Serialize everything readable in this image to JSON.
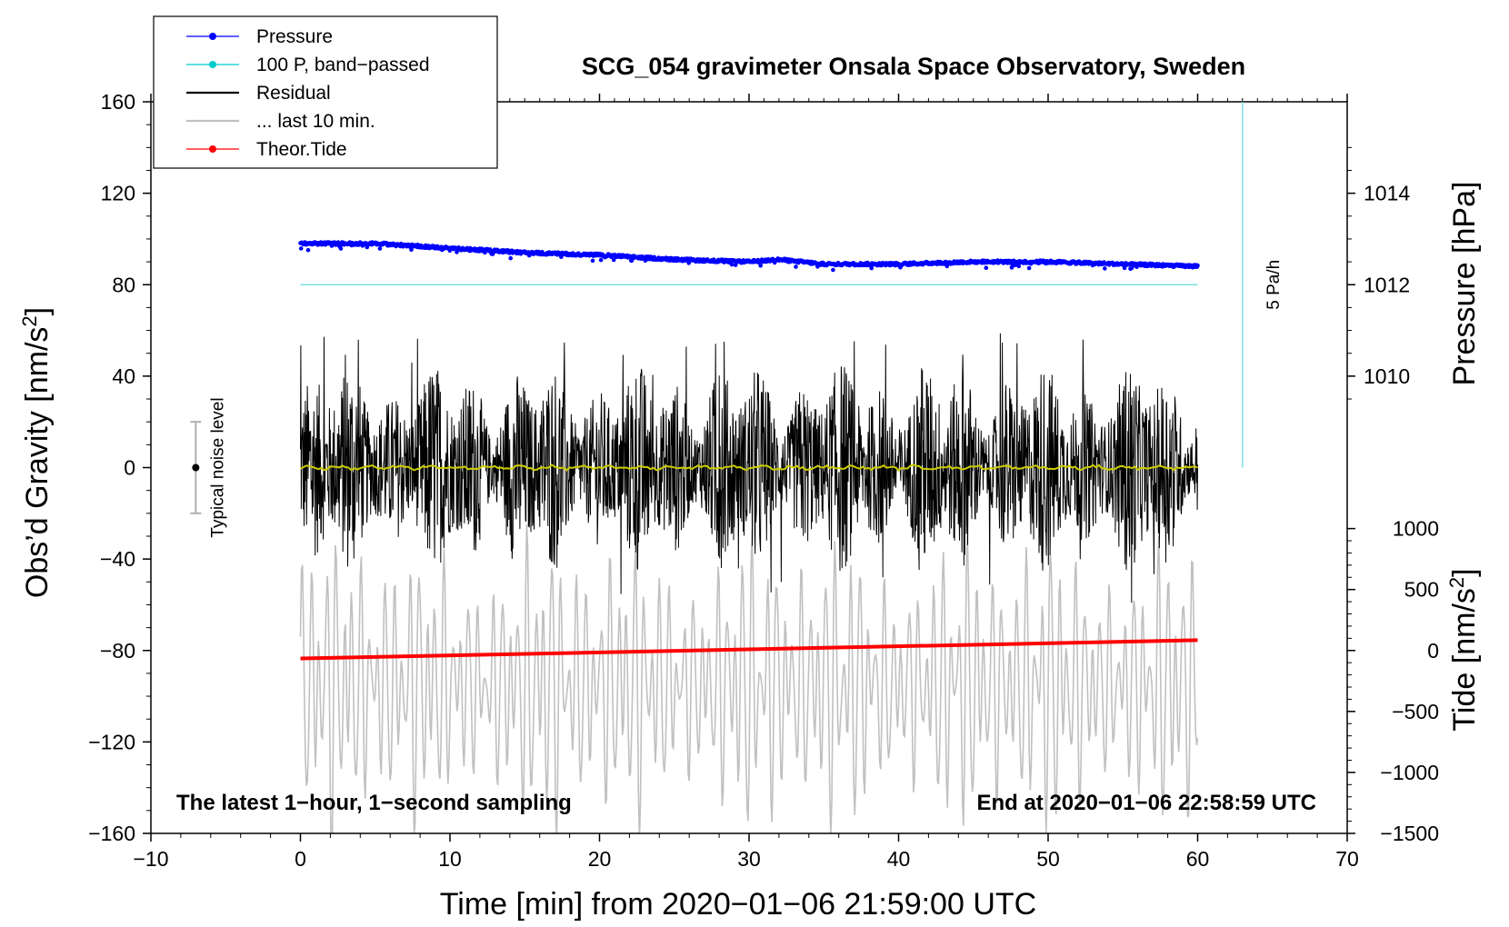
{
  "chart_data": {
    "type": "line",
    "title": "SCG_054 gravimeter Onsala Space Observatory, Sweden",
    "xlabel": "Time [min] from 2020−01−06 21:59:00 UTC",
    "ylabel": "Obs’d Gravity [nm/s",
    "ylabel_sup": "2",
    "ylabel_end": "]",
    "y2label": "Pressure [hPa]",
    "y3label": "Tide [nm/s",
    "y3label_sup": "2",
    "y3label_end": "]",
    "xlim": [
      -10,
      70
    ],
    "ylim": [
      -160,
      160
    ],
    "x_ticks": [
      -10,
      0,
      10,
      20,
      30,
      40,
      50,
      60,
      70
    ],
    "x_tick_labels": [
      "−10",
      "0",
      "10",
      "20",
      "30",
      "40",
      "50",
      "60",
      "70"
    ],
    "y_ticks": [
      160,
      120,
      80,
      40,
      0,
      -40,
      -80,
      -120,
      -160
    ],
    "y_tick_labels": [
      "160",
      "120",
      "80",
      "40",
      "0",
      "−40",
      "−80",
      "−120",
      "−160"
    ],
    "pressure_axis": {
      "ticks": [
        1014,
        1012,
        1010
      ],
      "tick_labels": [
        "1014",
        "1012",
        "1010"
      ],
      "gravity_equivalent": {
        "hPa_1012": 80,
        "nm_per_hPa": 20
      }
    },
    "tide_axis": {
      "ticks": [
        1000,
        500,
        0,
        -500,
        -1000,
        -1500
      ],
      "tick_labels": [
        "1000",
        "500",
        "0",
        "−500",
        "−1000",
        "−1500"
      ],
      "gravity_equivalent": {
        "tide_0": -80,
        "nm_per_unit": 0.05333
      }
    },
    "legend": [
      {
        "label": "Pressure",
        "color": "#0000ff",
        "marker": true
      },
      {
        "label": "100 P, band−passed",
        "color": "#00cccc",
        "marker": true
      },
      {
        "label": "Residual",
        "color": "#000000",
        "marker": false
      },
      {
        "label": "... last 10 min.",
        "color": "#c0c0c0",
        "marker": false
      },
      {
        "label": "Theor.Tide",
        "color": "#ff0000",
        "marker": true
      }
    ],
    "series": [
      {
        "name": "Pressure",
        "unit": "hPa",
        "color": "#0000ff",
        "x": [
          0,
          5,
          10,
          15,
          20,
          25,
          30,
          32,
          35,
          40,
          45,
          50,
          55,
          60
        ],
        "values": [
          1012.9,
          1012.9,
          1012.8,
          1012.7,
          1012.65,
          1012.55,
          1012.5,
          1012.55,
          1012.45,
          1012.45,
          1012.5,
          1012.5,
          1012.45,
          1012.4
        ]
      },
      {
        "name": "100 P, band−passed",
        "unit": "nm/s2",
        "color": "#7fe0e0",
        "x": [
          0,
          60
        ],
        "values": [
          80,
          80
        ]
      },
      {
        "name": "Residual",
        "unit": "nm/s2",
        "color": "#000000",
        "x_range": [
          0,
          60
        ],
        "center": 0,
        "typical_amplitude": 40,
        "max": 64,
        "min": -62
      },
      {
        "name": "Residual running mean",
        "unit": "nm/s2",
        "color": "#cccc00",
        "x": [
          0,
          60
        ],
        "values": [
          0,
          0
        ]
      },
      {
        "name": "... last 10 min.",
        "unit": "nm/s2",
        "color": "#c0c0c0",
        "x_range": [
          0,
          60
        ],
        "center": -95,
        "amplitude": 50
      },
      {
        "name": "Theor.Tide",
        "unit": "nm/s2",
        "color": "#ff0000",
        "x": [
          0,
          60
        ],
        "values": [
          -83.5,
          -75.5
        ]
      }
    ],
    "noise_marker": {
      "x": -7,
      "y": 0,
      "half_range": 20,
      "label": "Typical noise level"
    },
    "rate_marker": {
      "x": 63,
      "y_top": 160,
      "y_bottom": 0,
      "label": "5 Pa/h"
    },
    "annotations": {
      "bottom_left": "The latest 1−hour, 1−second sampling",
      "bottom_right": "End at 2020−01−06 22:58:59 UTC"
    }
  }
}
